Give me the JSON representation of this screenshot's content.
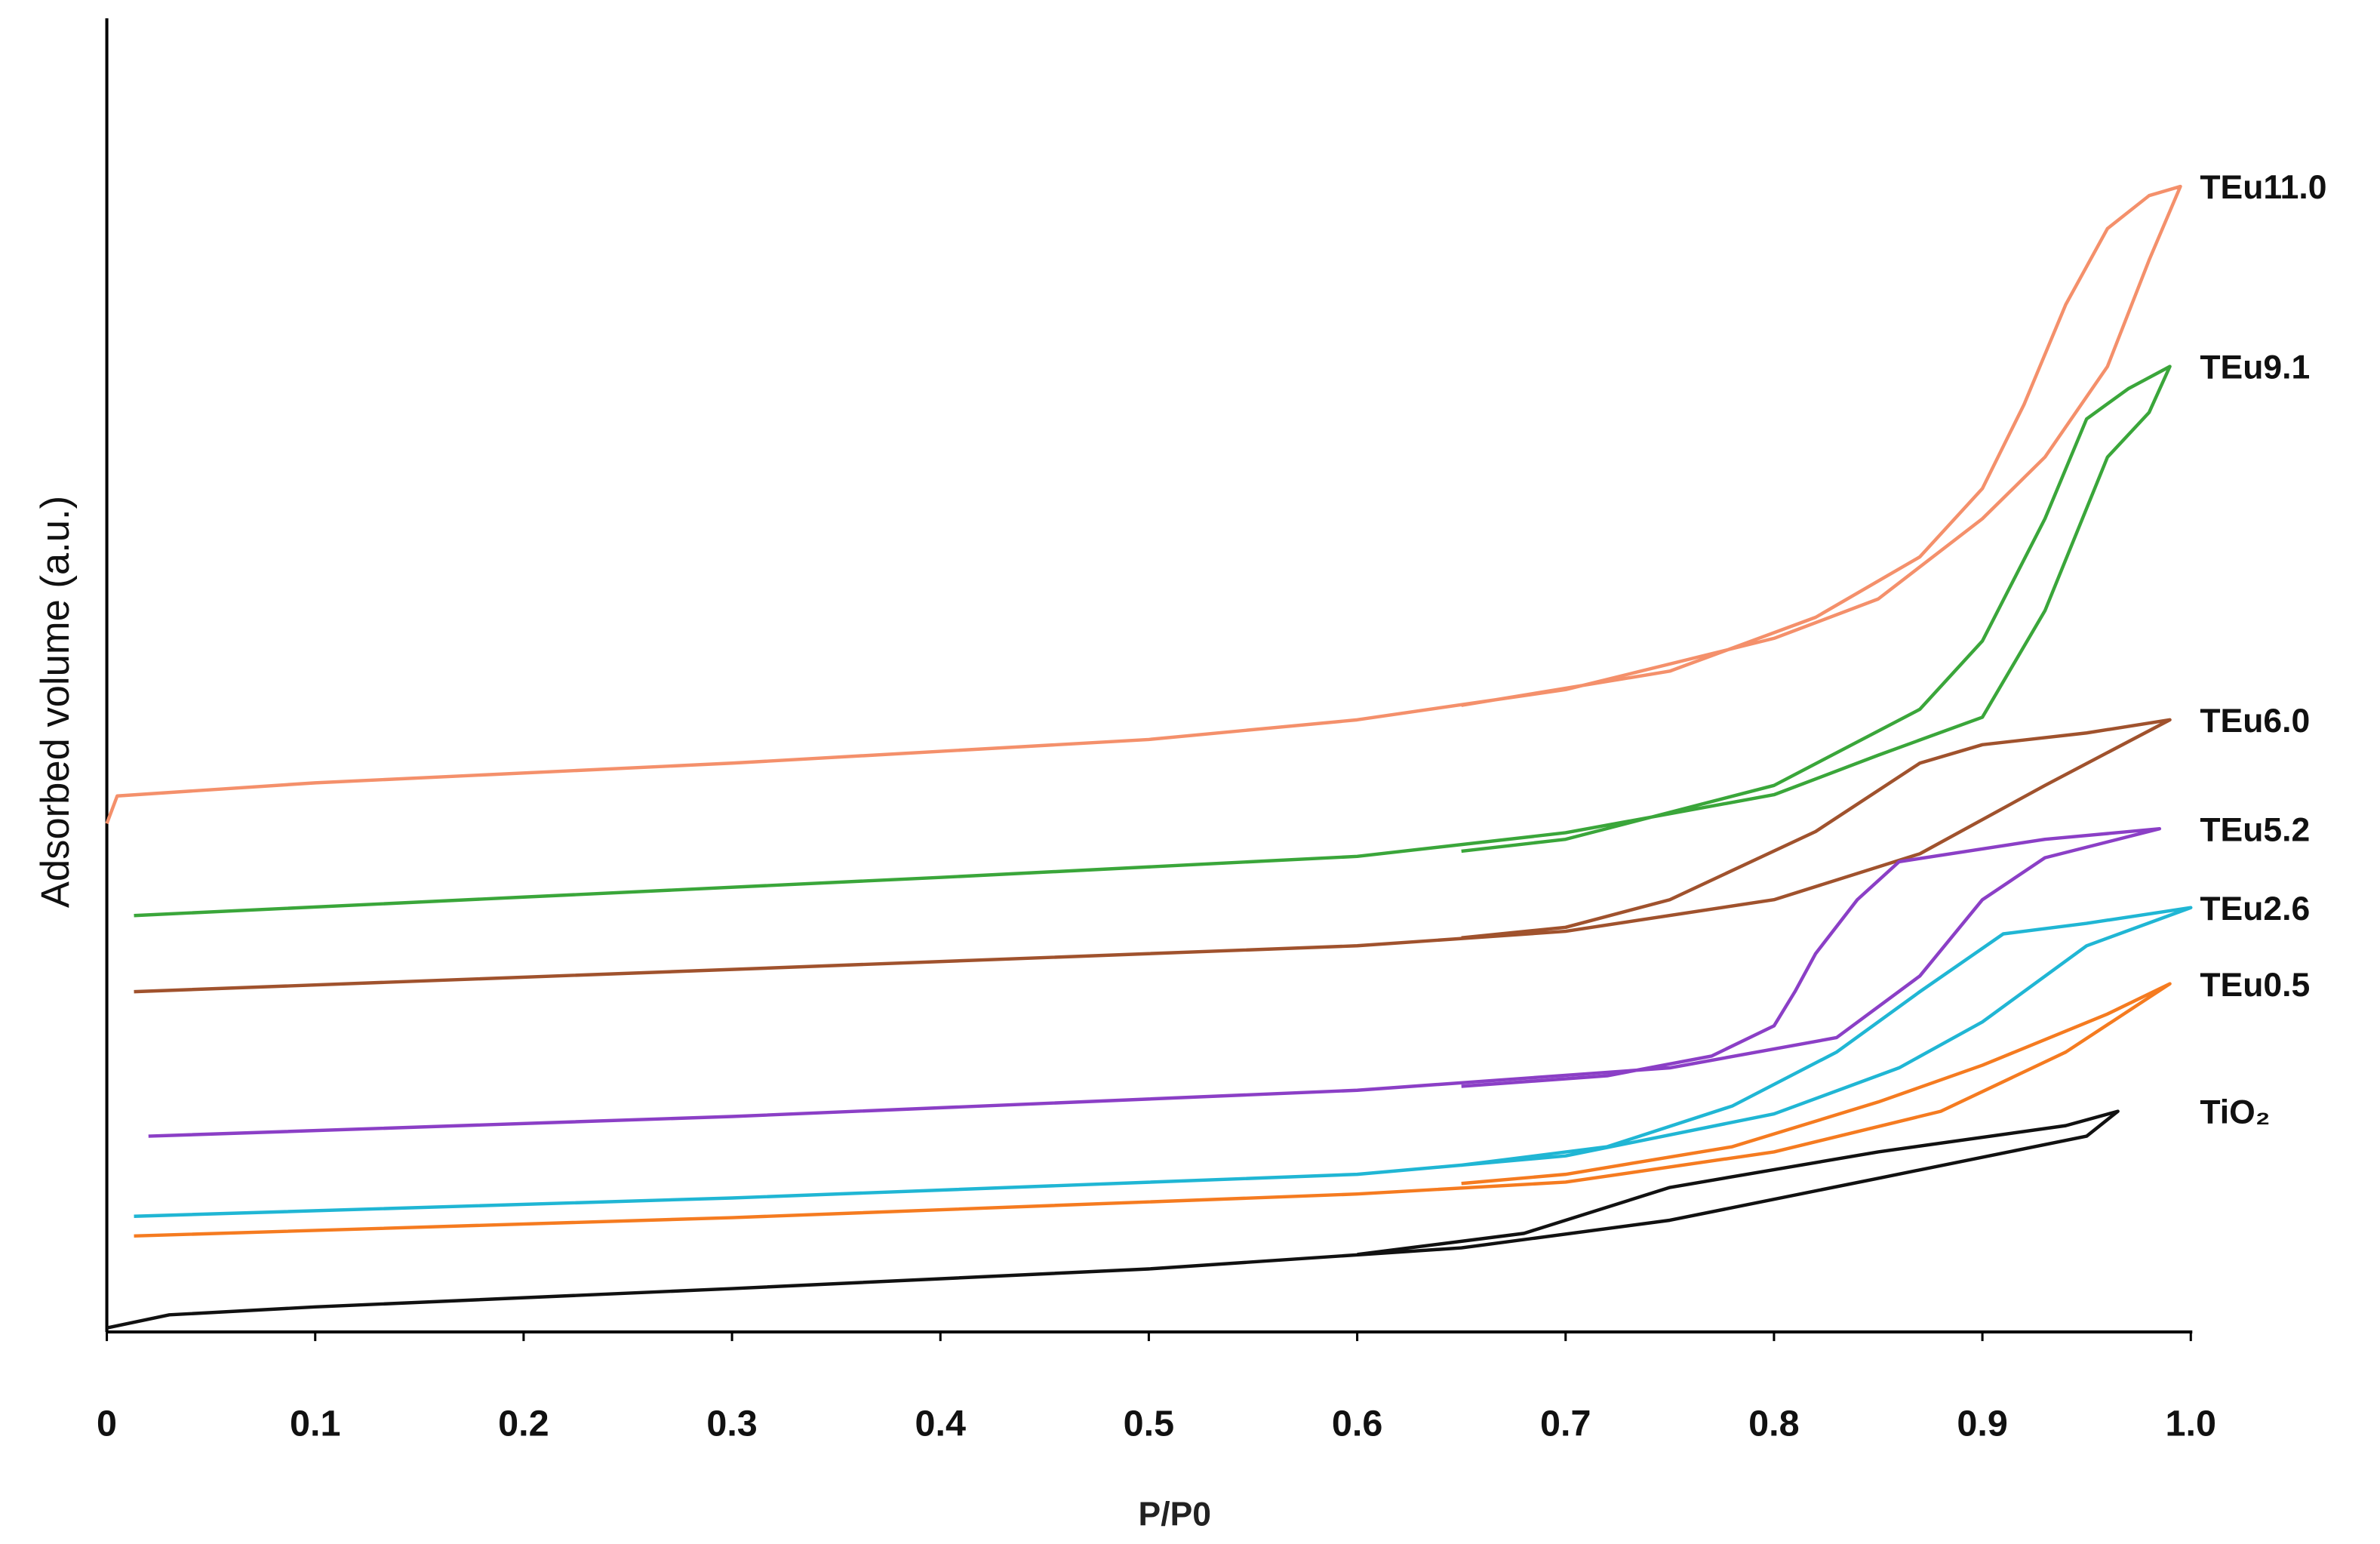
{
  "chart_data": {
    "type": "line",
    "x_label": "P/P0",
    "y_label": "Adsorbed volume (a.u.)",
    "xlim": [
      0,
      1
    ],
    "ylim": [
      0,
      100
    ],
    "xticks": [
      0,
      0.1,
      0.2,
      0.3,
      0.4,
      0.5,
      0.6,
      0.7,
      0.8,
      0.9,
      {
        "value": 1,
        "label": "1.0"
      }
    ],
    "series": [
      {
        "name": "TEu11.0",
        "color": "#f4906b",
        "x": [
          0,
          0.005,
          0.1,
          0.3,
          0.5,
          0.6,
          0.7,
          0.8,
          0.85,
          0.9,
          0.93,
          0.96,
          0.98,
          0.995,
          0.98,
          0.96,
          0.94,
          0.92,
          0.9,
          0.87,
          0.82,
          0.75,
          0.65
        ],
        "values": [
          38.7,
          40.8,
          41.8,
          43.3,
          45.1,
          46.6,
          48.9,
          52.8,
          55.8,
          61.9,
          66.6,
          73.5,
          81.6,
          87.2,
          86.5,
          84.0,
          78.2,
          70.6,
          64.2,
          59.0,
          54.4,
          50.3,
          47.7
        ]
      },
      {
        "name": "TEu9.1",
        "color": "#3aa63a",
        "x": [
          0.013,
          0.2,
          0.4,
          0.6,
          0.7,
          0.8,
          0.85,
          0.9,
          0.93,
          0.96,
          0.98,
          0.99,
          0.97,
          0.95,
          0.93,
          0.9,
          0.87,
          0.8,
          0.7,
          0.65
        ],
        "values": [
          31.7,
          33.1,
          34.6,
          36.2,
          38.0,
          40.9,
          43.9,
          46.8,
          54.9,
          66.6,
          70.0,
          73.5,
          71.8,
          69.5,
          61.9,
          52.6,
          47.4,
          41.6,
          37.5,
          36.6
        ]
      },
      {
        "name": "TEu6.0",
        "color": "#a0522d",
        "x": [
          0.013,
          0.3,
          0.6,
          0.7,
          0.8,
          0.87,
          0.93,
          0.99,
          0.95,
          0.9,
          0.87,
          0.82,
          0.75,
          0.7,
          0.65
        ],
        "values": [
          25.9,
          27.6,
          29.4,
          30.5,
          32.9,
          36.4,
          41.6,
          46.6,
          45.6,
          44.7,
          43.3,
          38.1,
          32.9,
          30.8,
          30.0
        ]
      },
      {
        "name": "TEu5.2",
        "color": "#8b3fc6",
        "x": [
          0.02,
          0.3,
          0.6,
          0.75,
          0.83,
          0.87,
          0.9,
          0.93,
          0.985,
          0.93,
          0.86,
          0.84,
          0.82,
          0.81,
          0.8,
          0.77,
          0.72,
          0.65
        ],
        "values": [
          14.9,
          16.4,
          18.4,
          20.1,
          22.4,
          27.1,
          32.9,
          36.1,
          38.3,
          37.5,
          35.8,
          32.9,
          28.8,
          25.9,
          23.3,
          21.0,
          19.5,
          18.7
        ]
      },
      {
        "name": "TEu2.6",
        "color": "#20b6d4",
        "x": [
          0.013,
          0.3,
          0.6,
          0.7,
          0.8,
          0.86,
          0.9,
          0.95,
          1.0,
          0.95,
          0.91,
          0.87,
          0.83,
          0.78,
          0.72,
          0.65
        ],
        "values": [
          8.8,
          10.2,
          12.0,
          13.4,
          16.6,
          20.1,
          23.6,
          29.4,
          32.3,
          31.1,
          30.3,
          25.9,
          21.3,
          17.2,
          14.1,
          12.7
        ]
      },
      {
        "name": "TEu0.5",
        "color": "#f57b20",
        "x": [
          0.013,
          0.3,
          0.6,
          0.7,
          0.8,
          0.88,
          0.94,
          0.99,
          0.96,
          0.9,
          0.85,
          0.78,
          0.7,
          0.65
        ],
        "values": [
          7.3,
          8.7,
          10.5,
          11.4,
          13.7,
          16.8,
          21.3,
          26.5,
          24.2,
          20.3,
          17.5,
          14.1,
          12.0,
          11.3
        ]
      },
      {
        "name": "TiO₂",
        "color": "#111111",
        "x": [
          0,
          0.03,
          0.1,
          0.3,
          0.5,
          0.65,
          0.75,
          0.85,
          0.95,
          0.965,
          0.94,
          0.85,
          0.75,
          0.68,
          0.6
        ],
        "values": [
          0.3,
          1.3,
          1.9,
          3.3,
          4.8,
          6.4,
          8.5,
          11.7,
          14.9,
          16.8,
          15.7,
          13.7,
          11.0,
          7.5,
          5.9
        ]
      }
    ]
  }
}
